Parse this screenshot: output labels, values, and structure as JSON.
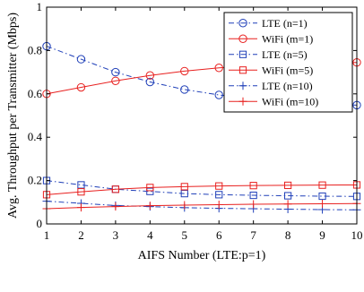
{
  "chart_data": {
    "type": "line",
    "title": "",
    "xlabel": "AIFS Number (LTE:p=1)",
    "ylabel": "Avg. Throughput per Transmitter (Mbps)",
    "xlim": [
      1,
      10
    ],
    "ylim": [
      0,
      1
    ],
    "xticks": [
      "1",
      "2",
      "3",
      "4",
      "5",
      "6",
      "7",
      "8",
      "9",
      "10"
    ],
    "yticks": [
      "0",
      "0.2",
      "0.4",
      "0.6",
      "0.8",
      "1"
    ],
    "grid": false,
    "legend": "top-right",
    "x": [
      1,
      2,
      3,
      4,
      5,
      6,
      7,
      8,
      9,
      10
    ],
    "series": [
      {
        "name": "LTE (n=1)",
        "color": "#1f3fb8",
        "line": "dashdot",
        "marker": "circle",
        "values": [
          0.82,
          0.76,
          0.7,
          0.655,
          0.62,
          0.595,
          0.578,
          0.565,
          0.555,
          0.548
        ]
      },
      {
        "name": "WiFi (m=1)",
        "color": "#e8201f",
        "line": "solid",
        "marker": "circle",
        "values": [
          0.6,
          0.63,
          0.66,
          0.685,
          0.705,
          0.72,
          0.73,
          0.735,
          0.74,
          0.745
        ]
      },
      {
        "name": "LTE (n=5)",
        "color": "#1f3fb8",
        "line": "dashdot",
        "marker": "square",
        "values": [
          0.2,
          0.18,
          0.16,
          0.15,
          0.14,
          0.135,
          0.132,
          0.13,
          0.128,
          0.127
        ]
      },
      {
        "name": "WiFi (m=5)",
        "color": "#e8201f",
        "line": "solid",
        "marker": "square",
        "values": [
          0.135,
          0.148,
          0.16,
          0.168,
          0.172,
          0.175,
          0.177,
          0.178,
          0.179,
          0.18
        ]
      },
      {
        "name": "LTE (n=10)",
        "color": "#1f3fb8",
        "line": "dashdot",
        "marker": "plus",
        "values": [
          0.105,
          0.095,
          0.085,
          0.08,
          0.075,
          0.072,
          0.07,
          0.068,
          0.066,
          0.065
        ]
      },
      {
        "name": "WiFi (m=10)",
        "color": "#e8201f",
        "line": "solid",
        "marker": "plus",
        "values": [
          0.07,
          0.076,
          0.08,
          0.084,
          0.087,
          0.089,
          0.091,
          0.092,
          0.093,
          0.094
        ]
      }
    ]
  }
}
